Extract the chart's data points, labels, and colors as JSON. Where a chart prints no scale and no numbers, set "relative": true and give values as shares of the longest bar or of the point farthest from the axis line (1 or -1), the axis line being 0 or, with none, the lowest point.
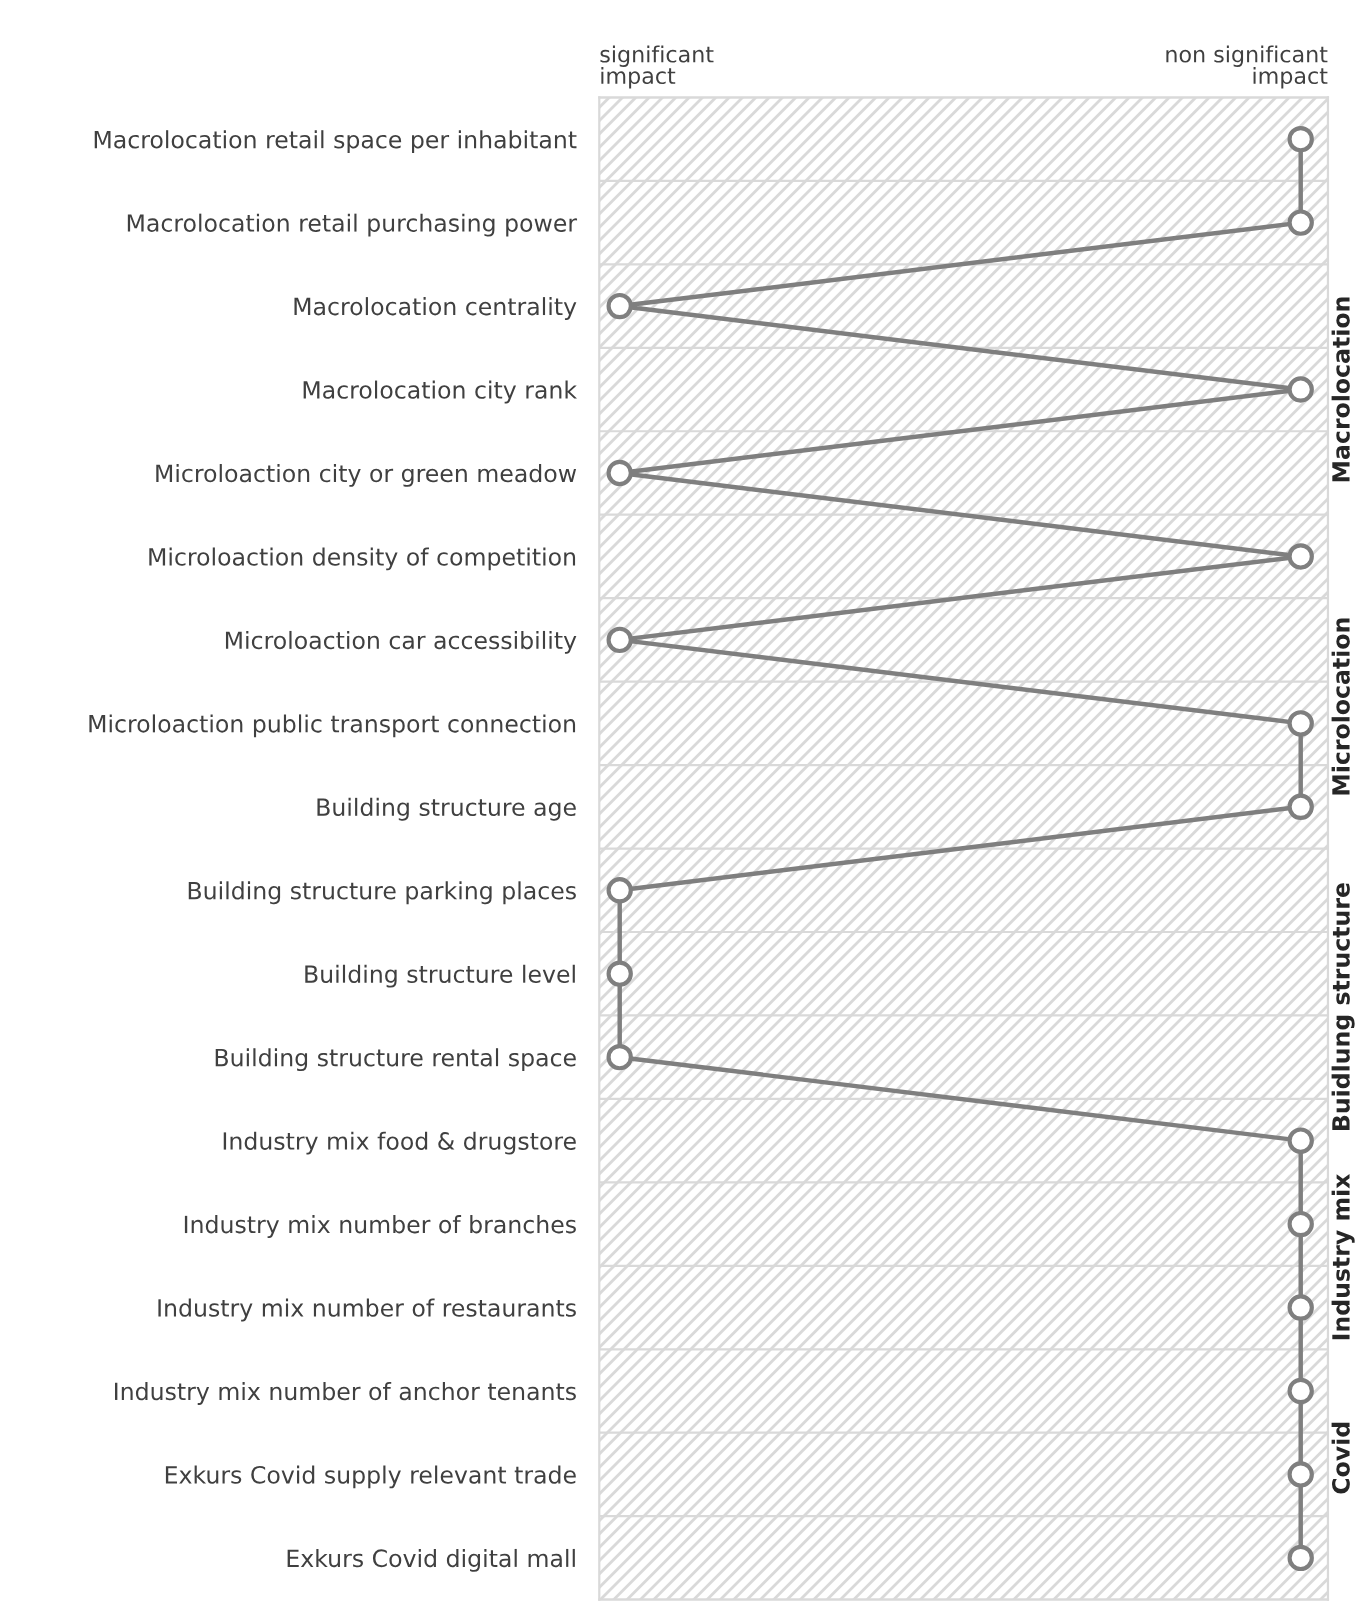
{
  "chart_data": {
    "type": "line",
    "orientation": "horizontal",
    "categories": [
      "Macrolocation retail space per inhabitant",
      "Macrolocation retail purchasing power",
      "Macrolocation centrality",
      "Macrolocation city rank",
      "Microloaction city or green meadow",
      "Microloaction density of competition",
      "Microloaction car accessibility",
      "Microloaction public transport connection",
      "Building structure age",
      "Building structure parking places",
      "Building structure level",
      "Building structure rental space",
      "Industry mix food & drugstore",
      "Industry mix number of branches",
      "Industry mix number of restaurants",
      "Industry mix number of anchor tenants",
      "Exkurs Covid supply relevant trade",
      "Exkurs Covid digital mall"
    ],
    "series": [
      {
        "color": "#7f7f7f",
        "values": [
          1,
          1,
          0,
          1,
          0,
          1,
          0,
          1,
          1,
          0,
          0,
          0,
          1,
          1,
          1,
          1,
          1,
          1
        ]
      }
    ],
    "relative": true,
    "marker": "circle",
    "line_style": "solid",
    "grid": false,
    "annotations": [
      "significant\nimpact",
      "non significant\nimpact",
      "Macrolocation",
      "Microlocation",
      "Buidlung structure",
      "Industry mix",
      "Covid"
    ]
  }
}
